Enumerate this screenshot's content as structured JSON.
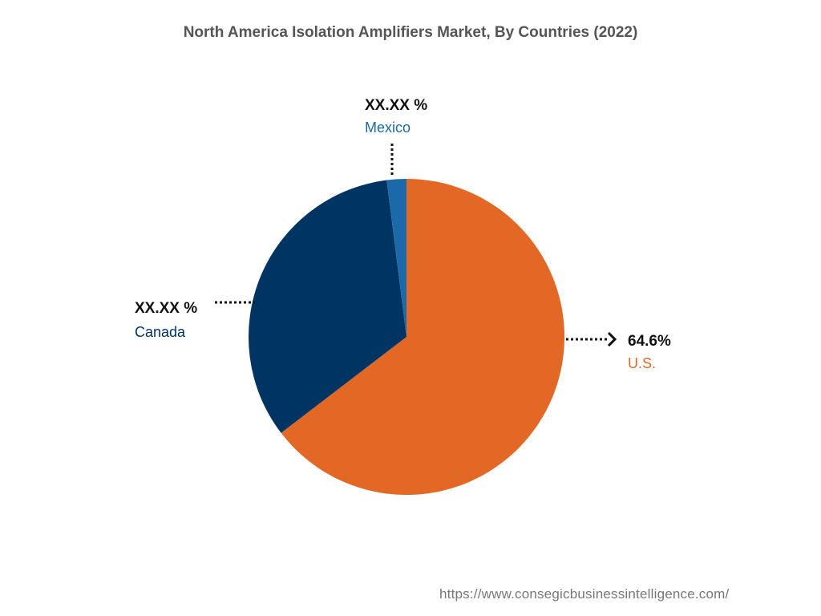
{
  "chart_data": {
    "type": "pie",
    "title": "North America Isolation Amplifiers Market, By Countries (2022)",
    "slices": [
      {
        "name": "U.S.",
        "value": 64.6,
        "value_label": "64.6%",
        "color": "#e46825"
      },
      {
        "name": "Canada",
        "value": 33.4,
        "value_label": "XX.XX %",
        "color": "#003462"
      },
      {
        "name": "Mexico",
        "value": 2.0,
        "value_label": "XX.XX %",
        "color": "#1b69a8"
      }
    ],
    "legend": "none"
  },
  "source": {
    "url": "https://www.consegicbusinessintelligence.com/"
  }
}
